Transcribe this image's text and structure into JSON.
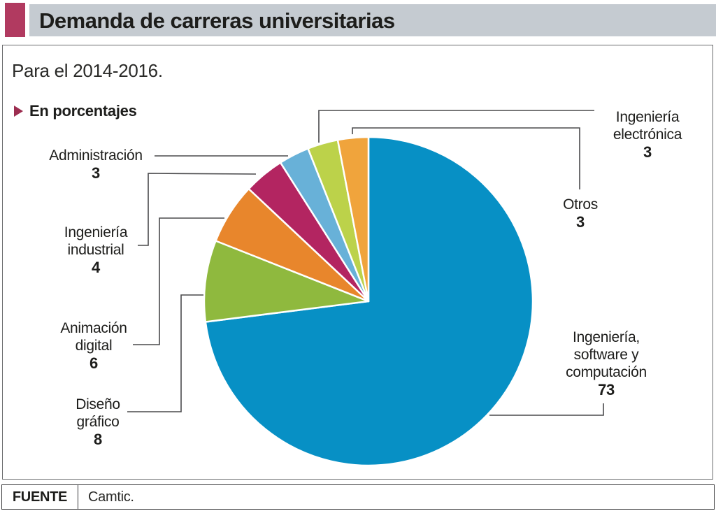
{
  "header": {
    "title": "Demanda de carreras universitarias"
  },
  "subtitle": "Para el 2014-2016.",
  "unit_label": "En porcentajes",
  "icons": {
    "bullet_marker": "right-pointing-triangle-icon"
  },
  "colors": {
    "accent": "#b13a60",
    "header_bg": "#c5cbd1",
    "connector": "#4a4a4c",
    "text": "#1d1d1b"
  },
  "chart_data": {
    "type": "pie",
    "title": "Demanda de carreras universitarias",
    "subtitle": "Para el 2014-2016.",
    "unit": "porcentajes",
    "start_angle_deg": 0,
    "direction": "clockwise",
    "total": 100,
    "slices": [
      {
        "label": "Ingeniería, software y computación",
        "value": 73,
        "color": "#0790c5"
      },
      {
        "label": "Diseño gráfico",
        "value": 8,
        "color": "#8fb93e"
      },
      {
        "label": "Animación digital",
        "value": 6,
        "color": "#e8862c"
      },
      {
        "label": "Ingeniería industrial",
        "value": 4,
        "color": "#b32561"
      },
      {
        "label": "Administración",
        "value": 3,
        "color": "#68b1d8"
      },
      {
        "label": "Ingeniería electrónica",
        "value": 3,
        "color": "#bcd24a"
      },
      {
        "label": "Otros",
        "value": 3,
        "color": "#f0a43c"
      }
    ]
  },
  "callouts": {
    "administracion": {
      "line1": "Administración",
      "value": "3"
    },
    "ing_industrial": {
      "line1": "Ingeniería",
      "line2": "industrial",
      "value": "4"
    },
    "animacion": {
      "line1": "Animación",
      "line2": "digital",
      "value": "6"
    },
    "diseno": {
      "line1": "Diseño",
      "line2": "gráfico",
      "value": "8"
    },
    "ing_electronica": {
      "line1": "Ingeniería",
      "line2": "electrónica",
      "value": "3"
    },
    "otros": {
      "line1": "Otros",
      "value": "3"
    },
    "ing_software": {
      "line1": "Ingeniería,",
      "line2": "software y",
      "line3": "computación",
      "value": "73"
    }
  },
  "footer": {
    "source_label": "FUENTE",
    "source_value": "Camtic."
  }
}
